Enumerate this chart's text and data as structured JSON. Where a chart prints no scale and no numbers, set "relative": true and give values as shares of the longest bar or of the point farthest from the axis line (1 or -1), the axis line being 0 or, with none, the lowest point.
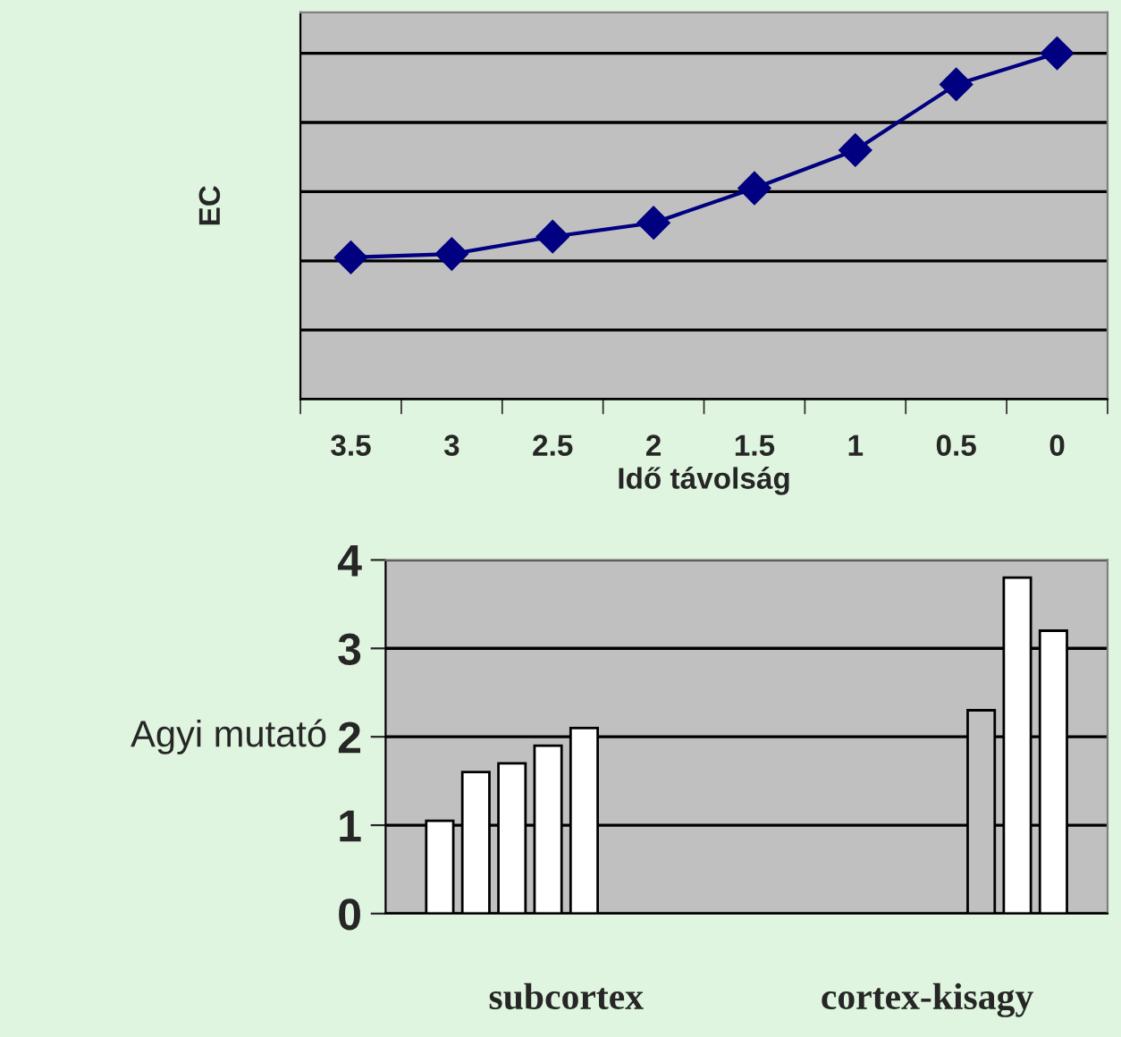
{
  "chart_data": [
    {
      "type": "line",
      "xlabel": "Idő távolság",
      "ylabel": "EC",
      "relative": true,
      "categories": [
        "3.5",
        "3",
        "2.5",
        "2",
        "1.5",
        "1",
        "0.5",
        "0"
      ],
      "series": [
        {
          "color": "#000080",
          "values": [
            0.41,
            0.42,
            0.47,
            0.51,
            0.61,
            0.72,
            0.91,
            1
          ]
        }
      ],
      "marker": "diamond",
      "line_style": "solid",
      "grid": "y"
    },
    {
      "type": "bar",
      "ylabel": "Agyi mutató",
      "categories": [
        "subcortex",
        "cortex-kisagy"
      ],
      "ylim": [
        0,
        4
      ],
      "yticks": [
        0,
        1,
        2,
        3,
        4
      ],
      "grid": "y",
      "series": [
        {
          "color": "#ffffff",
          "values": [
            1.05,
            null
          ]
        },
        {
          "color": "#ffffff",
          "values": [
            1.6,
            null
          ]
        },
        {
          "color": "#ffffff",
          "values": [
            1.7,
            null
          ]
        },
        {
          "color": "#ffffff",
          "values": [
            1.9,
            null
          ]
        },
        {
          "color": "#ffffff",
          "values": [
            2.1,
            null
          ]
        },
        {
          "color": "#c0c0c0",
          "values": [
            null,
            2.3
          ]
        },
        {
          "color": "#ffffff",
          "values": [
            null,
            3.8
          ]
        },
        {
          "color": "#ffffff",
          "values": [
            null,
            3.2
          ]
        }
      ]
    }
  ]
}
